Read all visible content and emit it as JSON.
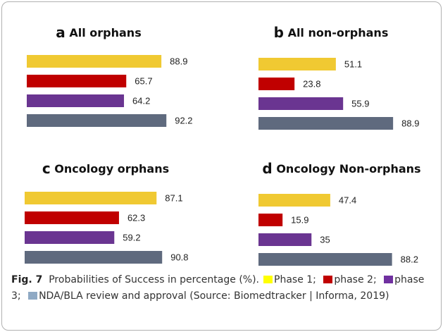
{
  "chart_data": [
    {
      "type": "bar",
      "orientation": "horizontal",
      "panel": "a",
      "title": "All orphans",
      "categories": [
        null,
        null,
        null,
        null
      ],
      "values": [
        88.9,
        65.7,
        64.2,
        92.2
      ],
      "colors": [
        "#f0c932",
        "#c00000",
        "#6a3591",
        "#5f6a7e"
      ],
      "xlim": [
        0,
        100
      ]
    },
    {
      "type": "bar",
      "orientation": "horizontal",
      "panel": "b",
      "title": "All non-orphans",
      "categories": [
        null,
        null,
        null,
        null
      ],
      "values": [
        51.1,
        23.8,
        55.9,
        88.9
      ],
      "colors": [
        "#f0c932",
        "#c00000",
        "#6a3591",
        "#5f6a7e"
      ],
      "xlim": [
        0,
        100
      ]
    },
    {
      "type": "bar",
      "orientation": "horizontal",
      "panel": "c",
      "title": "Oncology orphans",
      "categories": [
        null,
        null,
        null,
        null
      ],
      "values": [
        87.1,
        62.3,
        59.2,
        90.8
      ],
      "colors": [
        "#f0c932",
        "#c00000",
        "#6a3591",
        "#5f6a7e"
      ],
      "xlim": [
        0,
        100
      ]
    },
    {
      "type": "bar",
      "orientation": "horizontal",
      "panel": "d",
      "title": "Oncology Non-orphans",
      "categories": [
        null,
        null,
        null,
        null
      ],
      "values": [
        47.4,
        15.9,
        35,
        88.2
      ],
      "colors": [
        "#f0c932",
        "#c00000",
        "#6a3591",
        "#5f6a7e"
      ],
      "xlim": [
        0,
        100
      ]
    }
  ],
  "caption": {
    "label": "Fig. 7",
    "text": "Probabilities of Success in percentage (%).",
    "legend": [
      {
        "name": "Phase 1;",
        "color": "#ffff00"
      },
      {
        "name": "phase 2;",
        "color": "#c00000"
      },
      {
        "name": "phase 3;",
        "color": "#7030a0"
      },
      {
        "name": "NDA/BLA review and approval",
        "color": "#8fa9c4"
      }
    ],
    "source": "(Source: Biomedtracker | Informa, 2019)"
  }
}
